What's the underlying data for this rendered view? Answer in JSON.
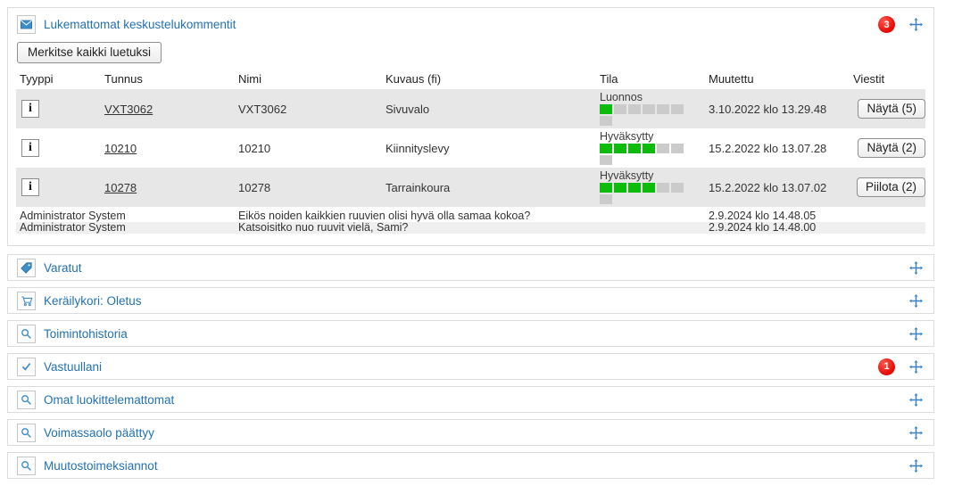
{
  "colors": {
    "accent_blue": "#2271b3",
    "status_green": "#0cbb0c",
    "status_gray": "#cbcbcb",
    "badge_red": "#e30d06",
    "row_alt_gray": "#e7e7e7"
  },
  "panels": {
    "unread": {
      "icon": "mail-icon",
      "title": "Lukemattomat keskustelukommentit",
      "badge": "3",
      "mark_all_button": "Merkitse kaikki luetuksi",
      "columns": [
        "Tyyppi",
        "Tunnus",
        "Nimi",
        "Kuvaus (fi)",
        "Tila",
        "Muutettu",
        "Viestit"
      ],
      "rows": [
        {
          "tunnus": "VXT3062",
          "nimi": "VXT3062",
          "kuvaus": "Sivuvalo",
          "tila": "Luonnos",
          "status_filled": 1,
          "status_total": 7,
          "muutettu": "3.10.2022 klo 13.29.48",
          "viestit": "Näytä (5)"
        },
        {
          "tunnus": "10210",
          "nimi": "10210",
          "kuvaus": "Kiinnityslevy",
          "tila": "Hyväksytty",
          "status_filled": 4,
          "status_total": 7,
          "muutettu": "15.2.2022 klo 13.07.28",
          "viestit": "Näytä (2)"
        },
        {
          "tunnus": "10278",
          "nimi": "10278",
          "kuvaus": "Tarrainkoura",
          "tila": "Hyväksytty",
          "status_filled": 4,
          "status_total": 7,
          "muutettu": "15.2.2022 klo 13.07.02",
          "viestit": "Piilota (2)"
        }
      ],
      "comments": [
        {
          "author": "Administrator System",
          "text": "Eikös noiden kaikkien ruuvien olisi hyvä olla samaa kokoa?",
          "date": "2.9.2024 klo 14.48.05"
        },
        {
          "author": "Administrator System",
          "text": "Katsoisitko nuo ruuvit vielä, Sami?",
          "date": "2.9.2024 klo 14.48.00"
        }
      ]
    },
    "collapsed": [
      {
        "title": "Varatut",
        "icon": "tag-icon",
        "badge": ""
      },
      {
        "title": "Keräilykori: Oletus",
        "icon": "cart-icon",
        "badge": ""
      },
      {
        "title": "Toimintohistoria",
        "icon": "search-icon",
        "badge": ""
      },
      {
        "title": "Vastuullani",
        "icon": "check-icon",
        "badge": "1"
      },
      {
        "title": "Omat luokittelemattomat",
        "icon": "search-icon",
        "badge": ""
      },
      {
        "title": "Voimassaolo päättyy",
        "icon": "search-icon",
        "badge": ""
      },
      {
        "title": "Muutostoimeksiannot",
        "icon": "search-icon",
        "badge": ""
      }
    ]
  }
}
